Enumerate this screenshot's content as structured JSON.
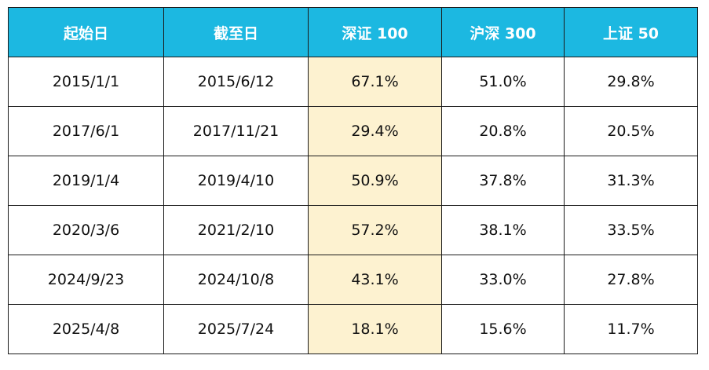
{
  "chart_data": {
    "type": "table",
    "columns": [
      "起始日",
      "截至日",
      "深证 100",
      "沪深 300",
      "上证 50"
    ],
    "rows": [
      [
        "2015/1/1",
        "2015/6/12",
        "67.1%",
        "51.0%",
        "29.8%"
      ],
      [
        "2017/6/1",
        "2017/11/21",
        "29.4%",
        "20.8%",
        "20.5%"
      ],
      [
        "2019/1/4",
        "2019/4/10",
        "50.9%",
        "37.8%",
        "31.3%"
      ],
      [
        "2020/3/6",
        "2021/2/10",
        "57.2%",
        "38.1%",
        "33.5%"
      ],
      [
        "2024/9/23",
        "2024/10/8",
        "43.1%",
        "33.0%",
        "27.8%"
      ],
      [
        "2025/4/8",
        "2025/7/24",
        "18.1%",
        "15.6%",
        "11.7%"
      ]
    ],
    "highlight_column_index": 2
  },
  "colors": {
    "header_bg": "#1cb8e1",
    "header_text": "#ffffff",
    "highlight_bg": "#fdf2d0",
    "border": "#1a1a1a"
  }
}
